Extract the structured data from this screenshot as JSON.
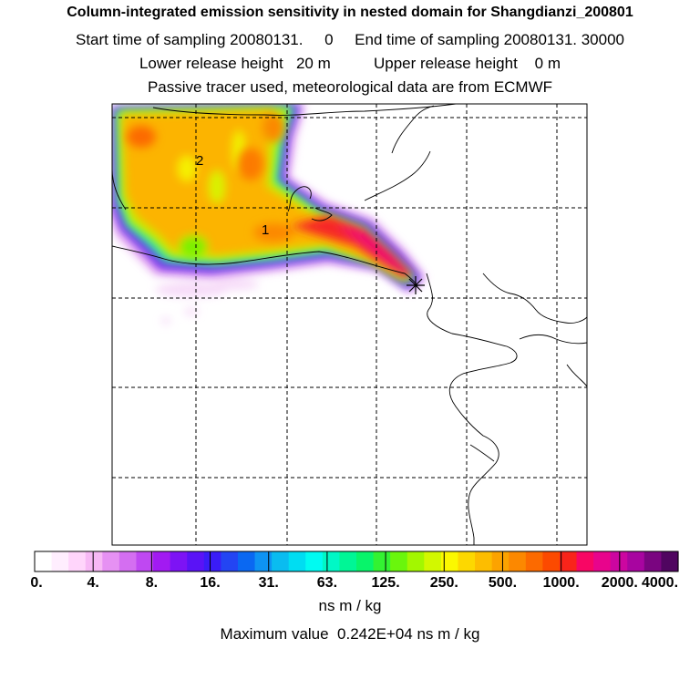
{
  "header": {
    "title": "Column-integrated emission sensitivity in nested domain for Shangdianzi_200801",
    "sampling_line": "Start time of sampling 20080131.     0     End time of sampling 20080131. 30000",
    "release_line": "Lower release height   20 m          Upper release height    0 m",
    "tracer_line": "Passive tracer used, meteorological data are from ECMWF"
  },
  "map": {
    "contour_labels": [
      "1",
      "2"
    ],
    "source_marker": "release-site-star-icon"
  },
  "colorbar": {
    "tick_labels": [
      "0.",
      "4.",
      "8.",
      "16.",
      "31.",
      "63.",
      "125.",
      "250.",
      "500.",
      "1000.",
      "2000.",
      "4000."
    ],
    "colors": [
      "#ffffff",
      "#ffeefe",
      "#ffd5fb",
      "#f7b8f5",
      "#e691f3",
      "#d46ef1",
      "#bf48f2",
      "#a21af2",
      "#7d13f5",
      "#5a13f6",
      "#3a1cf7",
      "#2345f3",
      "#0a68f2",
      "#0e93f3",
      "#0abcf0",
      "#00ddf2",
      "#00fbf2",
      "#00f8c6",
      "#00f696",
      "#08f46a",
      "#33f232",
      "#6af60c",
      "#a3f700",
      "#d2f800",
      "#fbf800",
      "#fdd800",
      "#fdbd00",
      "#fca300",
      "#fc8800",
      "#fc6a00",
      "#fc4a00",
      "#f9241a",
      "#f80664",
      "#e8048c",
      "#cc06a0",
      "#a805a0",
      "#7a0580",
      "#500560"
    ],
    "units": "ns m / kg"
  },
  "footer": {
    "max_value": "Maximum value  0.242E+04 ns m / kg"
  }
}
